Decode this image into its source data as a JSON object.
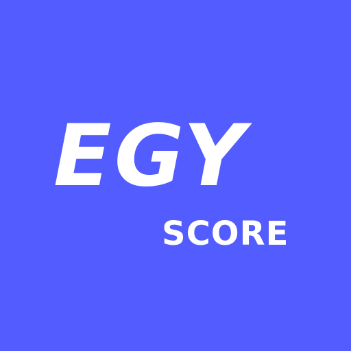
{
  "logo": {
    "main_text": "EGY",
    "sub_text": "SCORE",
    "background_color": "#525cff",
    "text_color": "#ffffff"
  }
}
